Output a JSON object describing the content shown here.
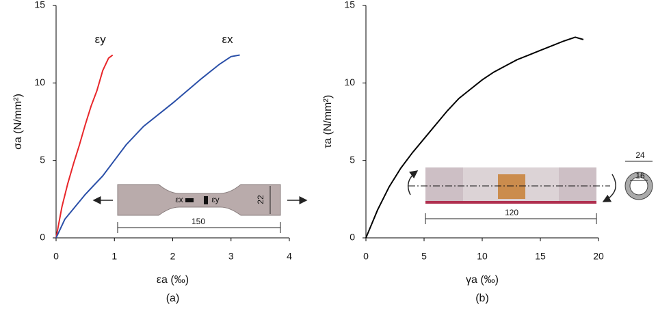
{
  "chart_data": [
    {
      "type": "line",
      "title": "(a)",
      "x_label": "εa (‰)",
      "y_label": "σa (N/mm²)",
      "xlim": [
        0,
        4
      ],
      "xticks": [
        0,
        1,
        2,
        3,
        4
      ],
      "ylim": [
        0,
        15
      ],
      "yticks": [
        0,
        5,
        10,
        15
      ],
      "series": [
        {
          "name": "εy",
          "color": "#e8262a",
          "x": [
            0,
            0.1,
            0.2,
            0.3,
            0.4,
            0.5,
            0.6,
            0.7,
            0.8,
            0.9,
            0.97
          ],
          "values": [
            0,
            2,
            3.5,
            4.8,
            6,
            7.3,
            8.5,
            9.5,
            10.8,
            11.6,
            11.8
          ]
        },
        {
          "name": "εx",
          "color": "#2a4fa8",
          "x": [
            0,
            0.15,
            0.5,
            0.8,
            1,
            1.2,
            1.5,
            2,
            2.5,
            2.8,
            3,
            3.15
          ],
          "values": [
            0,
            1.2,
            2.8,
            4,
            5,
            6,
            7.2,
            8.7,
            10.3,
            11.2,
            11.7,
            11.8
          ]
        }
      ],
      "annotations": [
        "εx",
        "εy",
        "22",
        "150"
      ]
    },
    {
      "type": "line",
      "title": "(b)",
      "x_label": "γa (‰)",
      "y_label": "τa (N/mm²)",
      "xlim": [
        0,
        20
      ],
      "xticks": [
        0,
        5,
        10,
        15,
        20
      ],
      "ylim": [
        0,
        15
      ],
      "yticks": [
        0,
        5,
        10,
        15
      ],
      "series": [
        {
          "name": null,
          "color": "#000000",
          "x": [
            0,
            1,
            2,
            3,
            4,
            5,
            6,
            7,
            8,
            9,
            10,
            11,
            12,
            13,
            14,
            15,
            16,
            17,
            18,
            18.7
          ],
          "values": [
            0,
            1.8,
            3.3,
            4.5,
            5.5,
            6.4,
            7.3,
            8.2,
            9,
            9.6,
            10.2,
            10.7,
            11.1,
            11.5,
            11.8,
            12.1,
            12.4,
            12.7,
            12.95,
            12.8
          ]
        }
      ],
      "annotations": [
        "120",
        "24",
        "16"
      ]
    }
  ]
}
